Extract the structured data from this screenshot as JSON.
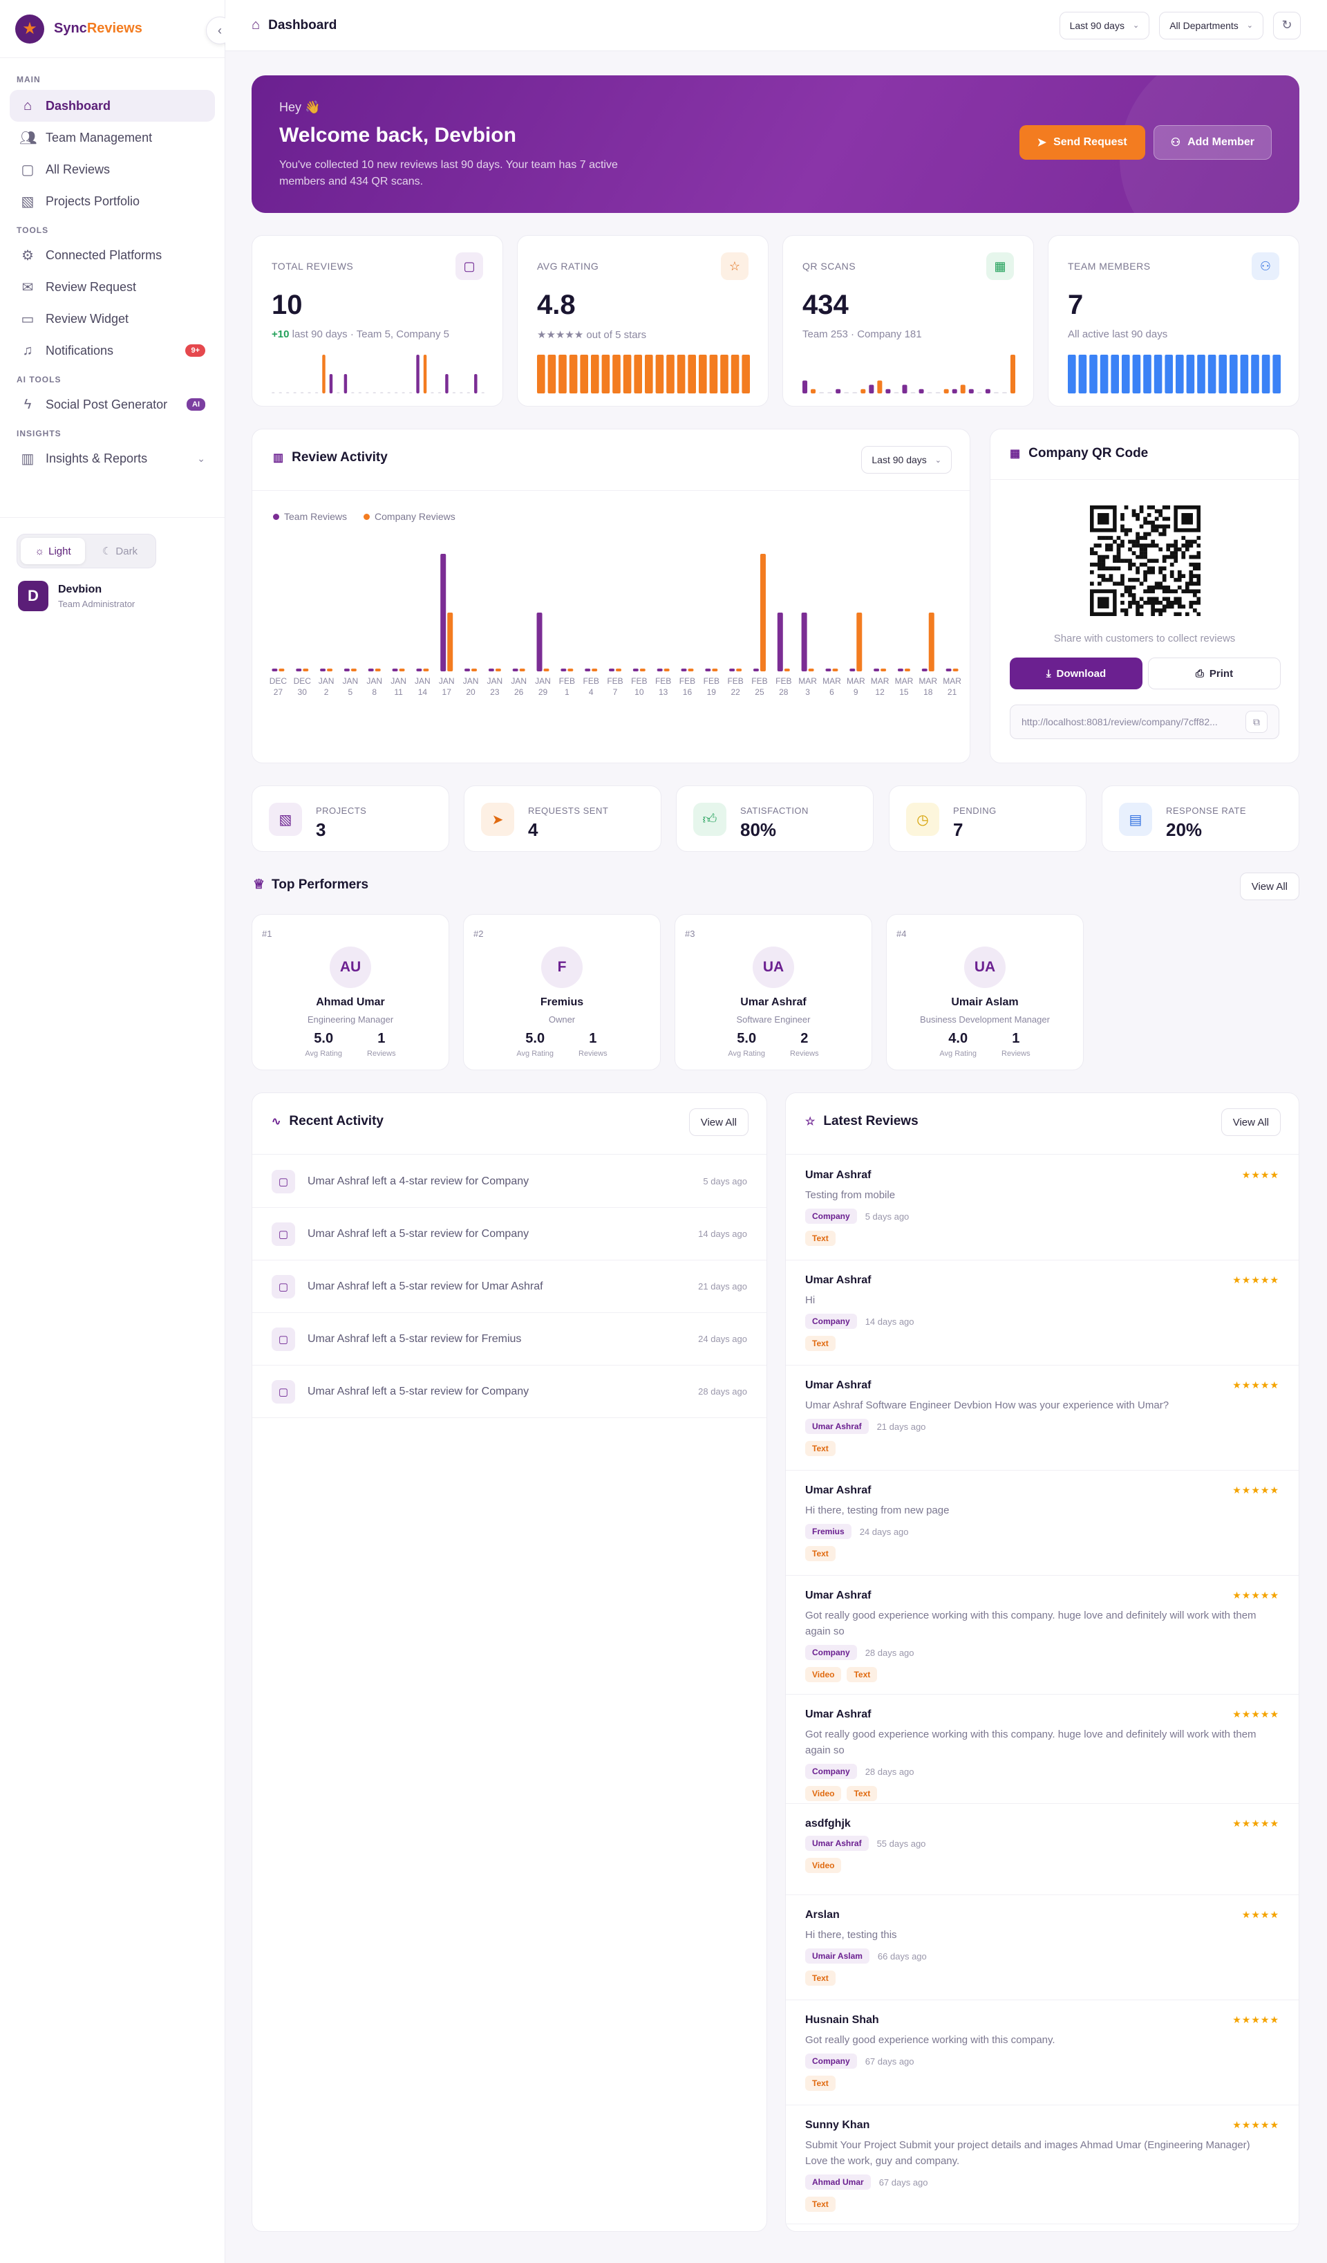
{
  "brand": {
    "name_a": "Sync",
    "name_b": "Reviews"
  },
  "sidebar": {
    "sections": [
      "MAIN",
      "TOOLS",
      "AI TOOLS",
      "INSIGHTS"
    ],
    "main": [
      {
        "label": "Dashboard",
        "icon": "home-icon"
      },
      {
        "label": "Team Management",
        "icon": "users-icon"
      },
      {
        "label": "All Reviews",
        "icon": "message-icon"
      },
      {
        "label": "Projects Portfolio",
        "icon": "image-icon"
      }
    ],
    "tools": [
      {
        "label": "Connected Platforms",
        "icon": "gear-icon"
      },
      {
        "label": "Review Request",
        "icon": "mail-icon"
      },
      {
        "label": "Review Widget",
        "icon": "monitor-icon"
      },
      {
        "label": "Notifications",
        "icon": "bell-icon",
        "badge": "9+"
      }
    ],
    "ai": [
      {
        "label": "Social Post Generator",
        "icon": "bolt-icon",
        "badge": "AI"
      }
    ],
    "insights": [
      {
        "label": "Insights & Reports",
        "icon": "bar-chart-icon"
      }
    ],
    "theme": {
      "light": "Light",
      "dark": "Dark"
    },
    "user": {
      "initial": "D",
      "name": "Devbion",
      "role": "Team Administrator"
    }
  },
  "topbar": {
    "title": "Dashboard",
    "range": "Last 90 days",
    "dept": "All Departments"
  },
  "hero": {
    "hey": "Hey 👋",
    "welcome": "Welcome back, Devbion",
    "sub": "You've collected 10 new reviews last 90 days. Your team has 7 active members and 434 QR scans.",
    "send": "Send Request",
    "add": "Add Member"
  },
  "stats": [
    {
      "label": "TOTAL REVIEWS",
      "value": "10",
      "sub_g": "+10",
      "sub": " last 90 days · Team 5, Company 5"
    },
    {
      "label": "AVG RATING",
      "value": "4.8",
      "sub": "★★★★★ out of 5 stars"
    },
    {
      "label": "QR SCANS",
      "value": "434",
      "sub": "Team 253 · Company 181"
    },
    {
      "label": "TEAM MEMBERS",
      "value": "7",
      "sub": "All active last 90 days"
    }
  ],
  "activity": {
    "title": "Review Activity",
    "range": "Last 90 days",
    "legend": [
      "Team Reviews",
      "Company Reviews"
    ],
    "colors": {
      "team": "#7b2d94",
      "company": "#f37c20"
    }
  },
  "chart_data": {
    "type": "bar",
    "categories": [
      "DEC 27",
      "DEC 30",
      "JAN 2",
      "JAN 5",
      "JAN 8",
      "JAN 11",
      "JAN 14",
      "JAN 17",
      "JAN 20",
      "JAN 23",
      "JAN 26",
      "JAN 29",
      "FEB 1",
      "FEB 4",
      "FEB 7",
      "FEB 10",
      "FEB 13",
      "FEB 16",
      "FEB 19",
      "FEB 22",
      "FEB 25",
      "FEB 28",
      "MAR 3",
      "MAR 6",
      "MAR 9",
      "MAR 12",
      "MAR 15",
      "MAR 18",
      "MAR 21"
    ],
    "series": [
      {
        "name": "Team Reviews",
        "values": [
          0,
          0,
          0,
          0,
          0,
          0,
          0,
          2,
          0,
          0,
          0,
          1,
          0,
          0,
          0,
          0,
          0,
          0,
          0,
          0,
          0,
          1,
          1,
          0,
          0,
          0,
          0,
          0,
          0
        ]
      },
      {
        "name": "Company Reviews",
        "values": [
          0,
          0,
          0,
          0,
          0,
          0,
          0,
          1,
          0,
          0,
          0,
          0,
          0,
          0,
          0,
          0,
          0,
          0,
          0,
          0,
          2,
          0,
          0,
          0,
          1,
          0,
          0,
          1,
          0
        ]
      }
    ]
  },
  "qr": {
    "title": "Company QR Code",
    "share": "Share with customers to collect reviews",
    "download": "Download",
    "print": "Print",
    "url": "http://localhost:8081/review/company/7cff82..."
  },
  "mini": [
    {
      "label": "PROJECTS",
      "value": "3",
      "icon": "image-icon",
      "bg": "#f3ecf7",
      "fg": "#6b2090"
    },
    {
      "label": "REQUESTS SENT",
      "value": "4",
      "icon": "send-icon",
      "bg": "#fdf0e4",
      "fg": "#e06a10"
    },
    {
      "label": "SATISFACTION",
      "value": "80%",
      "icon": "thumbs-up-icon",
      "bg": "#e6f6ec",
      "fg": "#22a05a"
    },
    {
      "label": "PENDING",
      "value": "7",
      "icon": "clock-icon",
      "bg": "#fdf6dc",
      "fg": "#d4a000"
    },
    {
      "label": "RESPONSE RATE",
      "value": "20%",
      "icon": "chat-icon",
      "bg": "#e8f0fd",
      "fg": "#2f6fe0"
    }
  ],
  "performers": {
    "title": "Top Performers",
    "view": "View All",
    "items": [
      {
        "rank": "#1",
        "initials": "AU",
        "name": "Ahmad Umar",
        "role": "Engineering Manager",
        "rating": "5.0",
        "reviews": "1"
      },
      {
        "rank": "#2",
        "initials": "F",
        "name": "Fremius",
        "role": "Owner",
        "rating": "5.0",
        "reviews": "1"
      },
      {
        "rank": "#3",
        "initials": "UA",
        "name": "Umar Ashraf",
        "role": "Software Engineer",
        "rating": "5.0",
        "reviews": "2"
      },
      {
        "rank": "#4",
        "initials": "UA",
        "name": "Umair Aslam",
        "role": "Business Development Manager",
        "rating": "4.0",
        "reviews": "1"
      }
    ],
    "rating_label": "Avg Rating",
    "reviews_label": "Reviews"
  },
  "recent": {
    "title": "Recent Activity",
    "view": "View All",
    "items": [
      {
        "text": "Umar Ashraf left a 4-star review for Company",
        "date": "5 days ago"
      },
      {
        "text": "Umar Ashraf left a 5-star review for Company",
        "date": "14 days ago"
      },
      {
        "text": "Umar Ashraf left a 5-star review for Umar Ashraf",
        "date": "21 days ago"
      },
      {
        "text": "Umar Ashraf left a 5-star review for Fremius",
        "date": "24 days ago"
      },
      {
        "text": "Umar Ashraf left a 5-star review for Company",
        "date": "28 days ago"
      }
    ]
  },
  "latest": {
    "title": "Latest Reviews",
    "view": "View All",
    "items": [
      {
        "name": "Umar Ashraf",
        "stars": "★★★★",
        "text": "Testing from mobile",
        "target": "Company",
        "date": "5 days ago",
        "tags": [
          "Text"
        ]
      },
      {
        "name": "Umar Ashraf",
        "stars": "★★★★★",
        "text": "Hi",
        "target": "Company",
        "date": "14 days ago",
        "tags": [
          "Text"
        ]
      },
      {
        "name": "Umar Ashraf",
        "stars": "★★★★★",
        "text": "Umar Ashraf Software Engineer Devbion How was your experience with Umar?",
        "target": "Umar Ashraf",
        "date": "21 days ago",
        "tags": [
          "Text"
        ]
      },
      {
        "name": "Umar Ashraf",
        "stars": "★★★★★",
        "text": "Hi there, testing from new page",
        "target": "Fremius",
        "date": "24 days ago",
        "tags": [
          "Text"
        ]
      },
      {
        "name": "Umar Ashraf",
        "stars": "★★★★★",
        "text": "Got really good experience working with this company. huge love and definitely will work with them again so",
        "target": "Company",
        "date": "28 days ago",
        "tags": [
          "Video",
          "Text"
        ]
      },
      {
        "name": "Umar Ashraf",
        "stars": "★★★★★",
        "text": "Got really good experience working with this company. huge love and definitely will work with them again so",
        "target": "Company",
        "date": "28 days ago",
        "tags": [
          "Video",
          "Text"
        ]
      },
      {
        "name": "asdfghjk",
        "stars": "★★★★★",
        "text": "",
        "target": "Umar Ashraf",
        "date": "55 days ago",
        "tags": [
          "Video"
        ]
      },
      {
        "name": "Arslan",
        "stars": "★★★★",
        "text": "Hi there, testing this",
        "target": "Umair Aslam",
        "date": "66 days ago",
        "tags": [
          "Text"
        ]
      },
      {
        "name": "Husnain Shah",
        "stars": "★★★★★",
        "text": "Got really good experience working with this company.",
        "target": "Company",
        "date": "67 days ago",
        "tags": [
          "Text"
        ]
      },
      {
        "name": "Sunny Khan",
        "stars": "★★★★★",
        "text": "Submit Your Project Submit your project details and images Ahmad Umar (Engineering Manager) Love the work, guy and company.",
        "target": "Ahmad Umar",
        "date": "67 days ago",
        "tags": [
          "Text"
        ]
      }
    ]
  }
}
